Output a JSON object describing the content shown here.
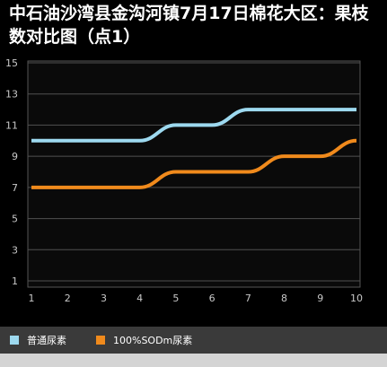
{
  "title": "中石油沙湾县金沟河镇7月17日棉花大区：果枝数对比图（点1）",
  "chart_data": {
    "type": "line",
    "title": "中石油沙湾县金沟河镇7月17日棉花大区：果枝数对比图（点1）",
    "x": [
      1,
      2,
      3,
      4,
      5,
      6,
      7,
      8,
      9,
      10
    ],
    "xlabel": "",
    "ylabel": "",
    "ylim": [
      1,
      15
    ],
    "yticks": [
      1,
      3,
      5,
      7,
      9,
      11,
      13,
      15
    ],
    "grid": true,
    "legend_position": "bottom",
    "series": [
      {
        "name": "普通尿素",
        "color": "#9dd9ef",
        "values": [
          10,
          10,
          10,
          10,
          11,
          11,
          12,
          12,
          12,
          12
        ]
      },
      {
        "name": "100%SODm尿素",
        "color": "#f08a1c",
        "values": [
          7,
          7,
          7,
          7,
          8,
          8,
          8,
          9,
          9,
          10
        ]
      }
    ]
  }
}
